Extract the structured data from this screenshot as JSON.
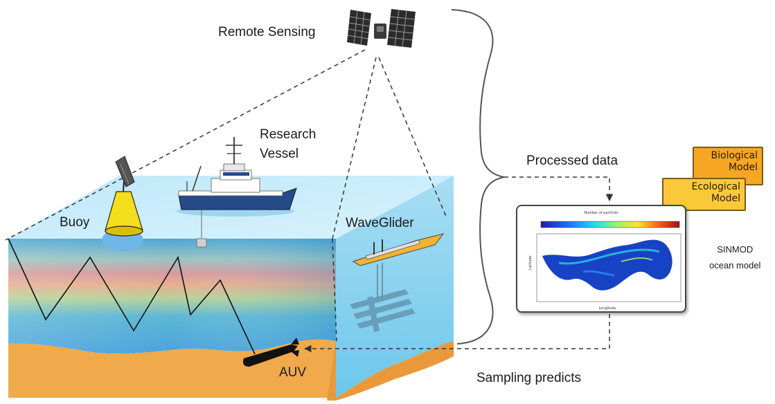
{
  "labels": {
    "remote_sensing": "Remote Sensing",
    "research_vessel_line1": "Research",
    "research_vessel_line2": "Vessel",
    "buoy": "Buoy",
    "waveglider": "WaveGlider",
    "auv": "AUV",
    "processed_data": "Processed data",
    "sampling_predicts": "Sampling predicts",
    "sinmod_line1": "SINMOD",
    "sinmod_line2": "ocean model"
  },
  "models": {
    "biological_line1": "Biological",
    "biological_line2": "Model",
    "ecological_line1": "Ecological",
    "ecological_line2": "Model"
  },
  "plot": {
    "title": "Number of particles",
    "ylabel": "Latitude",
    "xlabel": "Longitude"
  },
  "colors": {
    "biological": "#f5a623",
    "ecological": "#f9c93a",
    "sand": "#f0a94b",
    "water_surface": "#c9ecfa",
    "water_side": "#7fd0ef"
  },
  "icons": [
    "satellite-icon",
    "buoy-icon",
    "research-vessel-icon",
    "waveglider-icon",
    "auv-icon",
    "curly-brace-icon"
  ]
}
